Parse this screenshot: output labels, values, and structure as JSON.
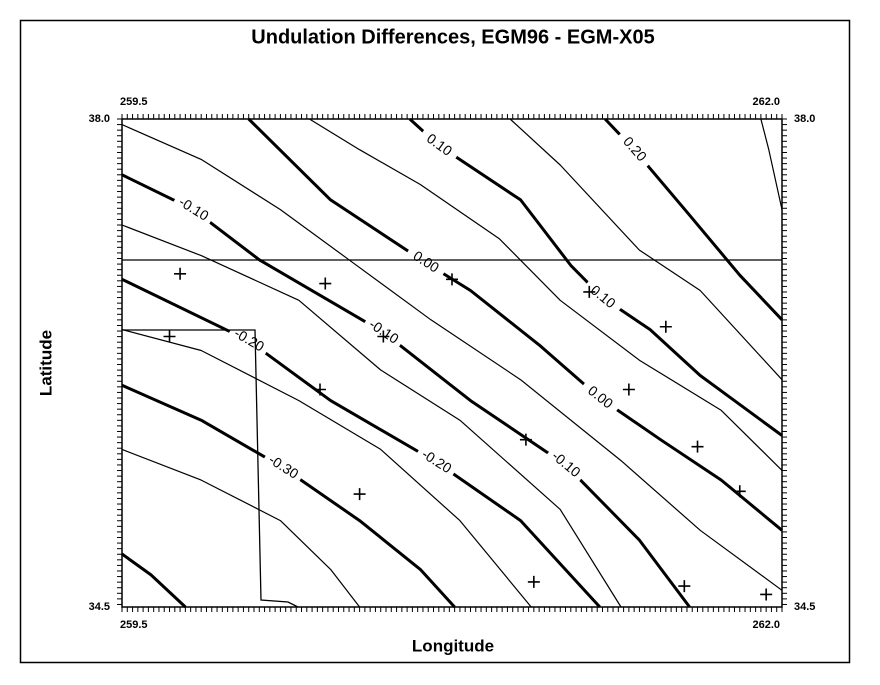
{
  "chart_data": {
    "type": "contour",
    "title": "Undulation Differences, EGM96 - EGM-X05",
    "x_label": "Longitude",
    "y_label": "Latitude",
    "xlim": [
      259.5,
      262.0
    ],
    "ylim": [
      34.5,
      38.0
    ],
    "xticks": [
      259.5,
      {
        "value": 262.0,
        "label": "262.0"
      }
    ],
    "yticks": [
      34.5,
      {
        "value": 38.0,
        "label": "38.0"
      }
    ],
    "contours": [
      {
        "level": 0.25,
        "x": [
          261.92,
          261.95,
          262.0
        ],
        "y": [
          38.0,
          37.78,
          37.35
        ]
      },
      {
        "level": 0.2,
        "x": [
          261.33,
          261.44,
          261.65,
          261.84,
          262.0
        ],
        "y": [
          38.0,
          37.78,
          37.31,
          36.88,
          36.56
        ],
        "labels": [
          {
            "text": "0.20",
            "x": 261.44,
            "y": 37.78
          }
        ]
      },
      {
        "level": 0.15,
        "x": [
          260.97,
          261.16,
          261.46,
          261.69,
          262.0
        ],
        "y": [
          38.0,
          37.67,
          37.06,
          36.77,
          36.13
        ]
      },
      {
        "level": 0.1,
        "x": [
          260.59,
          260.7,
          261.01,
          261.2,
          261.32,
          261.5,
          261.69,
          262.0
        ],
        "y": [
          38.0,
          37.81,
          37.42,
          36.95,
          36.72,
          36.49,
          36.16,
          35.73
        ],
        "labels": [
          {
            "text": "0.10",
            "x": 260.7,
            "y": 37.81
          },
          {
            "text": "0.10",
            "x": 261.32,
            "y": 36.72
          }
        ]
      },
      {
        "level": 0.05,
        "x": [
          260.21,
          260.4,
          260.63,
          260.93,
          261.16,
          261.46,
          261.77,
          262.0
        ],
        "y": [
          38.0,
          37.78,
          37.53,
          37.14,
          36.7,
          36.27,
          35.91,
          35.48
        ]
      },
      {
        "level": 0,
        "x": [
          259.98,
          260.29,
          260.65,
          260.82,
          261.08,
          261.31,
          261.54,
          261.77,
          262.0
        ],
        "y": [
          38.0,
          37.42,
          36.97,
          36.77,
          36.38,
          36.0,
          35.7,
          35.41,
          35.05
        ],
        "labels": [
          {
            "text": "0.00",
            "x": 260.65,
            "y": 36.97
          },
          {
            "text": "0.00",
            "x": 261.31,
            "y": 36.0
          }
        ]
      },
      {
        "level": -0.05,
        "x": [
          259.5,
          259.8,
          260.1,
          260.36,
          260.67,
          261.01,
          261.39,
          261.69,
          262.0
        ],
        "y": [
          37.96,
          37.71,
          37.35,
          36.99,
          36.56,
          36.13,
          35.55,
          35.05,
          34.62
        ]
      },
      {
        "level": -0.1,
        "x": [
          259.5,
          259.77,
          260.02,
          260.49,
          260.82,
          261.18,
          261.46,
          261.65
        ],
        "y": [
          37.6,
          37.35,
          36.99,
          36.47,
          35.98,
          35.52,
          34.98,
          34.5
        ],
        "labels": [
          {
            "text": "-0.10",
            "x": 259.77,
            "y": 37.35
          },
          {
            "text": "-0.10",
            "x": 260.49,
            "y": 36.47
          },
          {
            "text": "-0.10",
            "x": 261.18,
            "y": 35.52
          }
        ]
      },
      {
        "level": -0.15,
        "x": [
          259.5,
          259.8,
          260.17,
          260.48,
          260.78,
          261.16,
          261.39
        ],
        "y": [
          37.24,
          37.02,
          36.7,
          36.2,
          35.84,
          35.2,
          34.5
        ]
      },
      {
        "level": -0.2,
        "x": [
          259.5,
          259.98,
          260.29,
          260.69,
          261.01,
          261.31
        ],
        "y": [
          36.85,
          36.41,
          35.98,
          35.54,
          35.12,
          34.5
        ],
        "labels": [
          {
            "text": "-0.20",
            "x": 259.98,
            "y": 36.41
          },
          {
            "text": "-0.20",
            "x": 260.69,
            "y": 35.54
          }
        ]
      },
      {
        "level": -0.25,
        "x": [
          259.5,
          259.8,
          260.17,
          260.48,
          260.78,
          261.05
        ],
        "y": [
          36.49,
          36.34,
          35.98,
          35.63,
          35.12,
          34.5
        ]
      },
      {
        "level": -0.3,
        "x": [
          259.5,
          259.8,
          260.11,
          260.4,
          260.63,
          260.76
        ],
        "y": [
          36.09,
          35.84,
          35.5,
          35.12,
          34.77,
          34.5
        ],
        "labels": [
          {
            "text": "-0.30",
            "x": 260.11,
            "y": 35.5
          }
        ]
      },
      {
        "level": -0.35,
        "x": [
          259.5,
          259.8,
          260.1,
          260.29,
          260.4
        ],
        "y": [
          35.63,
          35.41,
          35.12,
          34.77,
          34.5
        ]
      },
      {
        "level": -0.4,
        "x": [
          259.5,
          259.61,
          259.74
        ],
        "y": [
          34.88,
          34.73,
          34.5
        ]
      }
    ],
    "points": {
      "x": [
        259.72,
        260.27,
        260.75,
        261.27,
        261.56,
        259.68,
        260.49,
        260.25,
        261.42,
        261.03,
        261.68,
        260.4,
        261.84,
        261.06,
        261.63,
        261.94
      ],
      "y": [
        36.89,
        36.82,
        36.85,
        36.76,
        36.51,
        36.44,
        36.44,
        36.06,
        36.06,
        35.7,
        35.65,
        35.31,
        35.33,
        34.68,
        34.65,
        34.59
      ]
    }
  }
}
